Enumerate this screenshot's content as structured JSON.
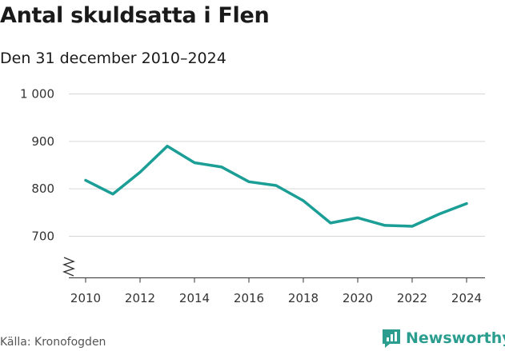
{
  "title": "Antal skuldsatta i Flen",
  "subtitle": "Den 31 december 2010–2024",
  "source": "Källa: Kronofogden",
  "brand": "Newsworthy",
  "colors": {
    "line": "#1a9e96",
    "grid": "#d6d6d6",
    "text": "#333333",
    "brand": "#2a9d8f"
  },
  "chart_data": {
    "type": "line",
    "x": [
      2010,
      2011,
      2012,
      2013,
      2014,
      2015,
      2016,
      2017,
      2018,
      2019,
      2020,
      2021,
      2022,
      2023,
      2024
    ],
    "values": [
      818,
      789,
      835,
      890,
      855,
      846,
      815,
      807,
      775,
      728,
      739,
      723,
      721,
      747,
      769
    ],
    "x_ticks": [
      2010,
      2012,
      2014,
      2016,
      2018,
      2020,
      2022,
      2024
    ],
    "y_ticks": [
      700,
      800,
      900,
      1000
    ],
    "y_tick_labels": [
      "700",
      "800",
      "900",
      "1 000"
    ],
    "ylim": [
      700,
      1000
    ],
    "grid": true,
    "axis_break": true
  }
}
